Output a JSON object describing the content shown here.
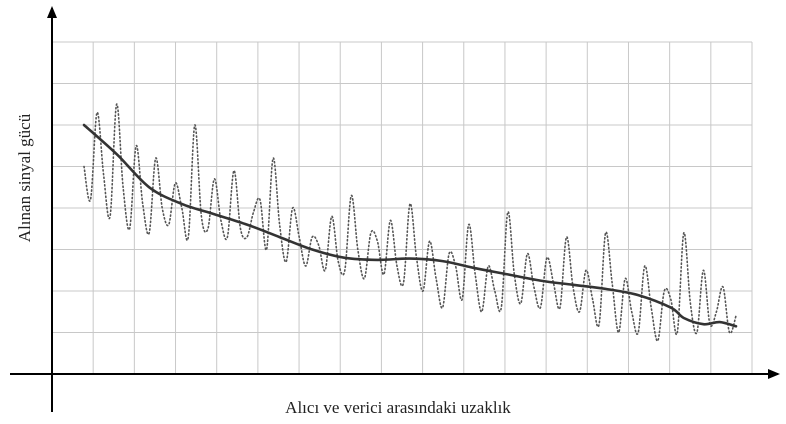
{
  "chart_data": {
    "type": "line",
    "xlabel": "Alıcı ve verici arasındaki uzaklık",
    "ylabel": "Alınan sinyal gücü",
    "xlim": [
      0,
      10
    ],
    "ylim": [
      0,
      8
    ],
    "grid": true,
    "series": [
      {
        "style": "solid",
        "color": "#333333",
        "x": [
          0,
          0.5,
          1.0,
          1.5,
          2.0,
          2.5,
          3.0,
          3.5,
          4.0,
          4.5,
          5.0,
          5.5,
          6.0,
          6.5,
          7.0,
          7.5,
          8.0,
          8.5,
          9.0,
          9.2,
          9.5,
          9.75,
          10.0
        ],
        "y": [
          6.0,
          5.3,
          4.5,
          4.1,
          3.85,
          3.6,
          3.3,
          3.0,
          2.8,
          2.75,
          2.78,
          2.72,
          2.55,
          2.4,
          2.25,
          2.15,
          2.05,
          1.9,
          1.6,
          1.35,
          1.2,
          1.25,
          1.15
        ]
      },
      {
        "style": "dotted",
        "color": "#555555",
        "x": [
          0,
          0.1,
          0.2,
          0.3,
          0.4,
          0.5,
          0.6,
          0.7,
          0.8,
          0.9,
          1.0,
          1.1,
          1.2,
          1.3,
          1.4,
          1.5,
          1.6,
          1.7,
          1.8,
          1.9,
          2.0,
          2.1,
          2.2,
          2.3,
          2.4,
          2.5,
          2.6,
          2.7,
          2.8,
          2.9,
          3.0,
          3.1,
          3.2,
          3.3,
          3.4,
          3.5,
          3.6,
          3.7,
          3.8,
          3.9,
          4.0,
          4.1,
          4.2,
          4.3,
          4.4,
          4.5,
          4.6,
          4.7,
          4.8,
          4.9,
          5.0,
          5.1,
          5.2,
          5.3,
          5.4,
          5.5,
          5.6,
          5.7,
          5.8,
          5.9,
          6.0,
          6.1,
          6.2,
          6.3,
          6.4,
          6.5,
          6.6,
          6.7,
          6.8,
          6.9,
          7.0,
          7.1,
          7.2,
          7.3,
          7.4,
          7.5,
          7.6,
          7.7,
          7.8,
          7.9,
          8.0,
          8.1,
          8.2,
          8.3,
          8.4,
          8.5,
          8.6,
          8.7,
          8.8,
          8.9,
          9.0,
          9.1,
          9.2,
          9.3,
          9.4,
          9.5,
          9.6,
          9.7,
          9.8,
          9.9,
          10.0
        ],
        "y": [
          5.0,
          4.2,
          6.3,
          4.8,
          3.8,
          6.5,
          4.5,
          3.5,
          5.5,
          4.1,
          3.4,
          5.2,
          4.0,
          3.6,
          4.6,
          4.0,
          3.3,
          6.0,
          3.8,
          3.5,
          4.7,
          3.7,
          3.3,
          4.9,
          3.5,
          3.3,
          3.9,
          4.2,
          3.0,
          5.2,
          3.6,
          2.7,
          4.0,
          3.3,
          2.6,
          3.3,
          3.1,
          2.5,
          3.8,
          2.7,
          2.5,
          4.3,
          3.0,
          2.3,
          3.4,
          3.2,
          2.4,
          3.7,
          2.6,
          2.2,
          4.1,
          2.8,
          2.0,
          3.2,
          2.3,
          1.6,
          2.9,
          2.6,
          1.8,
          3.6,
          2.4,
          1.5,
          2.6,
          2.0,
          1.6,
          3.9,
          2.4,
          1.7,
          2.9,
          2.1,
          1.6,
          2.8,
          2.2,
          1.6,
          3.3,
          2.1,
          1.5,
          2.5,
          1.8,
          1.2,
          3.4,
          2.2,
          1.0,
          2.3,
          1.5,
          1.0,
          2.6,
          1.6,
          0.8,
          2.0,
          1.8,
          1.0,
          3.4,
          1.7,
          1.0,
          2.5,
          1.2,
          1.5,
          2.1,
          1.0,
          1.4
        ]
      }
    ]
  }
}
